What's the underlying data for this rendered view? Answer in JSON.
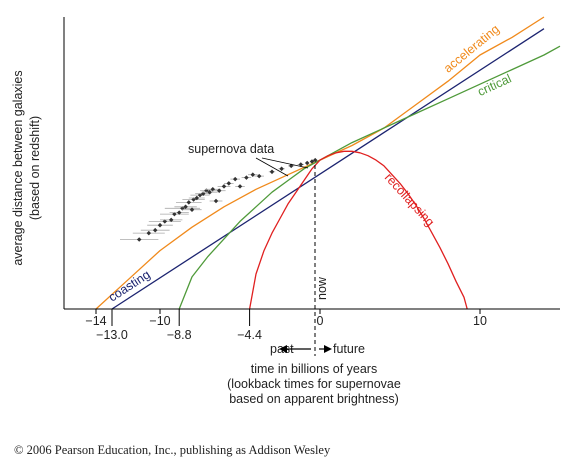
{
  "chart_data": {
    "type": "line",
    "title": "",
    "ylabel": [
      "average distance between galaxies",
      "(based on redshift)"
    ],
    "xlabel": [
      "time in billions of years",
      "(lookback times for supernovae",
      "based on apparent brightness)"
    ],
    "xlim": [
      -16,
      15
    ],
    "ylim": [
      0,
      1
    ],
    "x_ticks_upper": [
      -14,
      -10,
      0,
      10
    ],
    "x_ticks_lower": [
      -13.0,
      -8.8,
      -4.4
    ],
    "tick_labels_upper": [
      "−14",
      "−10",
      "0",
      "10"
    ],
    "tick_labels_lower": [
      "−13.0",
      "−8.8",
      "−4.4"
    ],
    "now_label": "now",
    "past_label": "past",
    "future_label": "future",
    "supernova_label": "supernova data",
    "colors": {
      "accelerating": "#f08a1c",
      "coasting": "#1c2470",
      "critical": "#4f9a3a",
      "recollapsing": "#e02020",
      "axis": "#000000",
      "data": "#333333",
      "errorbar": "#aaaaaa"
    },
    "series": [
      {
        "name": "accelerating",
        "color": "#f08a1c",
        "x": [
          -14,
          -12,
          -10,
          -8,
          -6,
          -4,
          -2,
          0,
          2,
          4,
          6,
          8,
          10,
          12,
          14
        ],
        "y": [
          0.0,
          0.1,
          0.2,
          0.28,
          0.35,
          0.41,
          0.46,
          0.51,
          0.56,
          0.62,
          0.7,
          0.78,
          0.87,
          0.93,
          1.0
        ]
      },
      {
        "name": "coasting",
        "color": "#1c2470",
        "x": [
          -13,
          14
        ],
        "y": [
          0.0,
          0.96
        ]
      },
      {
        "name": "critical",
        "color": "#4f9a3a",
        "x": [
          -8.8,
          -8,
          -7,
          -6,
          -5,
          -4,
          -3,
          -2,
          -1,
          0,
          2,
          4,
          6,
          8,
          10,
          12,
          14,
          15
        ],
        "y": [
          0.0,
          0.11,
          0.18,
          0.24,
          0.3,
          0.35,
          0.4,
          0.44,
          0.48,
          0.51,
          0.57,
          0.62,
          0.67,
          0.72,
          0.77,
          0.82,
          0.87,
          0.9
        ]
      },
      {
        "name": "recollapsing",
        "color": "#e02020",
        "x": [
          -4.4,
          -4,
          -3.5,
          -3,
          -2.5,
          -2,
          -1.5,
          -1,
          -0.5,
          0,
          0.5,
          1,
          1.5,
          2,
          2.5,
          3,
          3.5,
          4,
          4.5,
          5,
          5.5,
          6,
          6.5,
          7,
          7.5,
          8,
          8.5,
          9,
          9.2
        ],
        "y": [
          0.0,
          0.12,
          0.2,
          0.26,
          0.31,
          0.36,
          0.4,
          0.44,
          0.48,
          0.51,
          0.525,
          0.535,
          0.54,
          0.54,
          0.535,
          0.525,
          0.51,
          0.49,
          0.46,
          0.43,
          0.395,
          0.355,
          0.31,
          0.26,
          0.21,
          0.155,
          0.095,
          0.04,
          0.0
        ]
      }
    ],
    "supernova_points": [
      {
        "x": -11.3,
        "y": 0.238,
        "xerr": 1.2
      },
      {
        "x": -10.7,
        "y": 0.26,
        "xerr": 1.0
      },
      {
        "x": -10.3,
        "y": 0.27,
        "xerr": 0.9
      },
      {
        "x": -10.0,
        "y": 0.287,
        "xerr": 0.8
      },
      {
        "x": -9.7,
        "y": 0.3,
        "xerr": 1.0
      },
      {
        "x": -9.3,
        "y": 0.305,
        "xerr": 0.7
      },
      {
        "x": -9.1,
        "y": 0.325,
        "xerr": 0.9
      },
      {
        "x": -8.8,
        "y": 0.33,
        "xerr": 0.6
      },
      {
        "x": -8.6,
        "y": 0.345,
        "xerr": 1.1
      },
      {
        "x": -8.4,
        "y": 0.35,
        "xerr": 0.7
      },
      {
        "x": -8.2,
        "y": 0.365,
        "xerr": 0.8
      },
      {
        "x": -8.0,
        "y": 0.34,
        "xerr": 0.6
      },
      {
        "x": -7.9,
        "y": 0.375,
        "xerr": 0.7
      },
      {
        "x": -7.7,
        "y": 0.38,
        "xerr": 0.5
      },
      {
        "x": -7.5,
        "y": 0.39,
        "xerr": 0.6
      },
      {
        "x": -7.3,
        "y": 0.395,
        "xerr": 0.5
      },
      {
        "x": -7.1,
        "y": 0.405,
        "xerr": 0.4
      },
      {
        "x": -6.9,
        "y": 0.4,
        "xerr": 0.5
      },
      {
        "x": -6.7,
        "y": 0.41,
        "xerr": 0.5
      },
      {
        "x": -6.5,
        "y": 0.37,
        "xerr": 0.4
      },
      {
        "x": -6.3,
        "y": 0.405,
        "xerr": 0.4
      },
      {
        "x": -6.0,
        "y": 0.42,
        "xerr": 0.4
      },
      {
        "x": -5.7,
        "y": 0.43,
        "xerr": 0.3
      },
      {
        "x": -5.3,
        "y": 0.445,
        "xerr": 0.3
      },
      {
        "x": -5.0,
        "y": 0.42,
        "xerr": 0.3
      },
      {
        "x": -4.6,
        "y": 0.45,
        "xerr": 0.3
      },
      {
        "x": -4.2,
        "y": 0.46,
        "xerr": 0.3
      },
      {
        "x": -3.8,
        "y": 0.455,
        "xerr": 0.3
      },
      {
        "x": -3.0,
        "y": 0.47,
        "xerr": 0.2
      },
      {
        "x": -2.4,
        "y": 0.48,
        "xerr": 0.2
      },
      {
        "x": -1.8,
        "y": 0.49,
        "xerr": 0.2
      },
      {
        "x": -1.2,
        "y": 0.495,
        "xerr": 0.2
      },
      {
        "x": -0.8,
        "y": 0.5,
        "xerr": 0.1
      },
      {
        "x": -0.5,
        "y": 0.505,
        "xerr": 0.1
      },
      {
        "x": -0.3,
        "y": 0.51,
        "xerr": 0.1
      }
    ]
  },
  "copyright": "© 2006 Pearson Education, Inc., publishing as Addison Wesley"
}
